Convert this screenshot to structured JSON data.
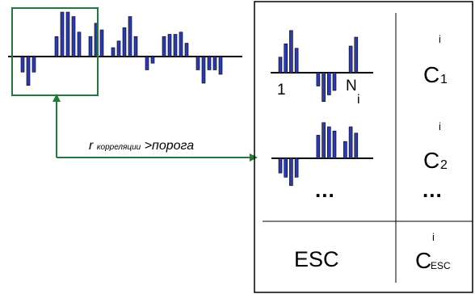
{
  "condition": {
    "r_symbol": "r",
    "r_subscript": "корреляции",
    "comparison": ">",
    "threshold": "порога"
  },
  "table": {
    "pattern_1": {
      "start_label": "1",
      "end_label": "N",
      "end_subscript": "i"
    },
    "ellipsis_left": "...",
    "ellipsis_right": "...",
    "esc_label": "ESC",
    "classes": [
      {
        "letter": "C",
        "superscript": "i",
        "subscript": "1"
      },
      {
        "letter": "C",
        "superscript": "i",
        "subscript": "2"
      },
      {
        "letter": "C",
        "superscript": "i",
        "subscript": "ESC"
      }
    ]
  },
  "colors": {
    "bar_fill": "#2b3bb3",
    "bar_stroke": "#000000",
    "highlight_box": "#1f7a3c",
    "arrow": "#1f7a3c",
    "lines": "#000000"
  },
  "signal": {
    "description_values": [
      -0.35,
      -0.65,
      -0.35,
      0,
      0,
      0,
      0.45,
      1,
      1,
      0.9,
      0.55,
      0,
      0.45,
      0.75,
      0.6,
      0,
      0.2,
      0.35,
      0.65,
      0.9,
      0.45,
      0,
      -0.3,
      -0.15,
      0,
      0.45,
      0.5,
      0.5,
      0.55,
      0.3,
      0,
      -0.3,
      -0.6,
      -0.3,
      -0.3,
      -0.4
    ]
  },
  "pattern_1_values": [
    0.35,
    0.65,
    0.95,
    0.55,
    0,
    0,
    0,
    -0.3,
    -0.65,
    -0.5,
    -0.4,
    0,
    0,
    0.6,
    0.8
  ],
  "pattern_2_values": [
    -0.35,
    -0.45,
    -0.65,
    -0.45,
    0,
    0,
    0,
    0.55,
    0.85,
    0.75,
    0.65,
    0,
    0.4,
    0.75,
    0.6
  ]
}
